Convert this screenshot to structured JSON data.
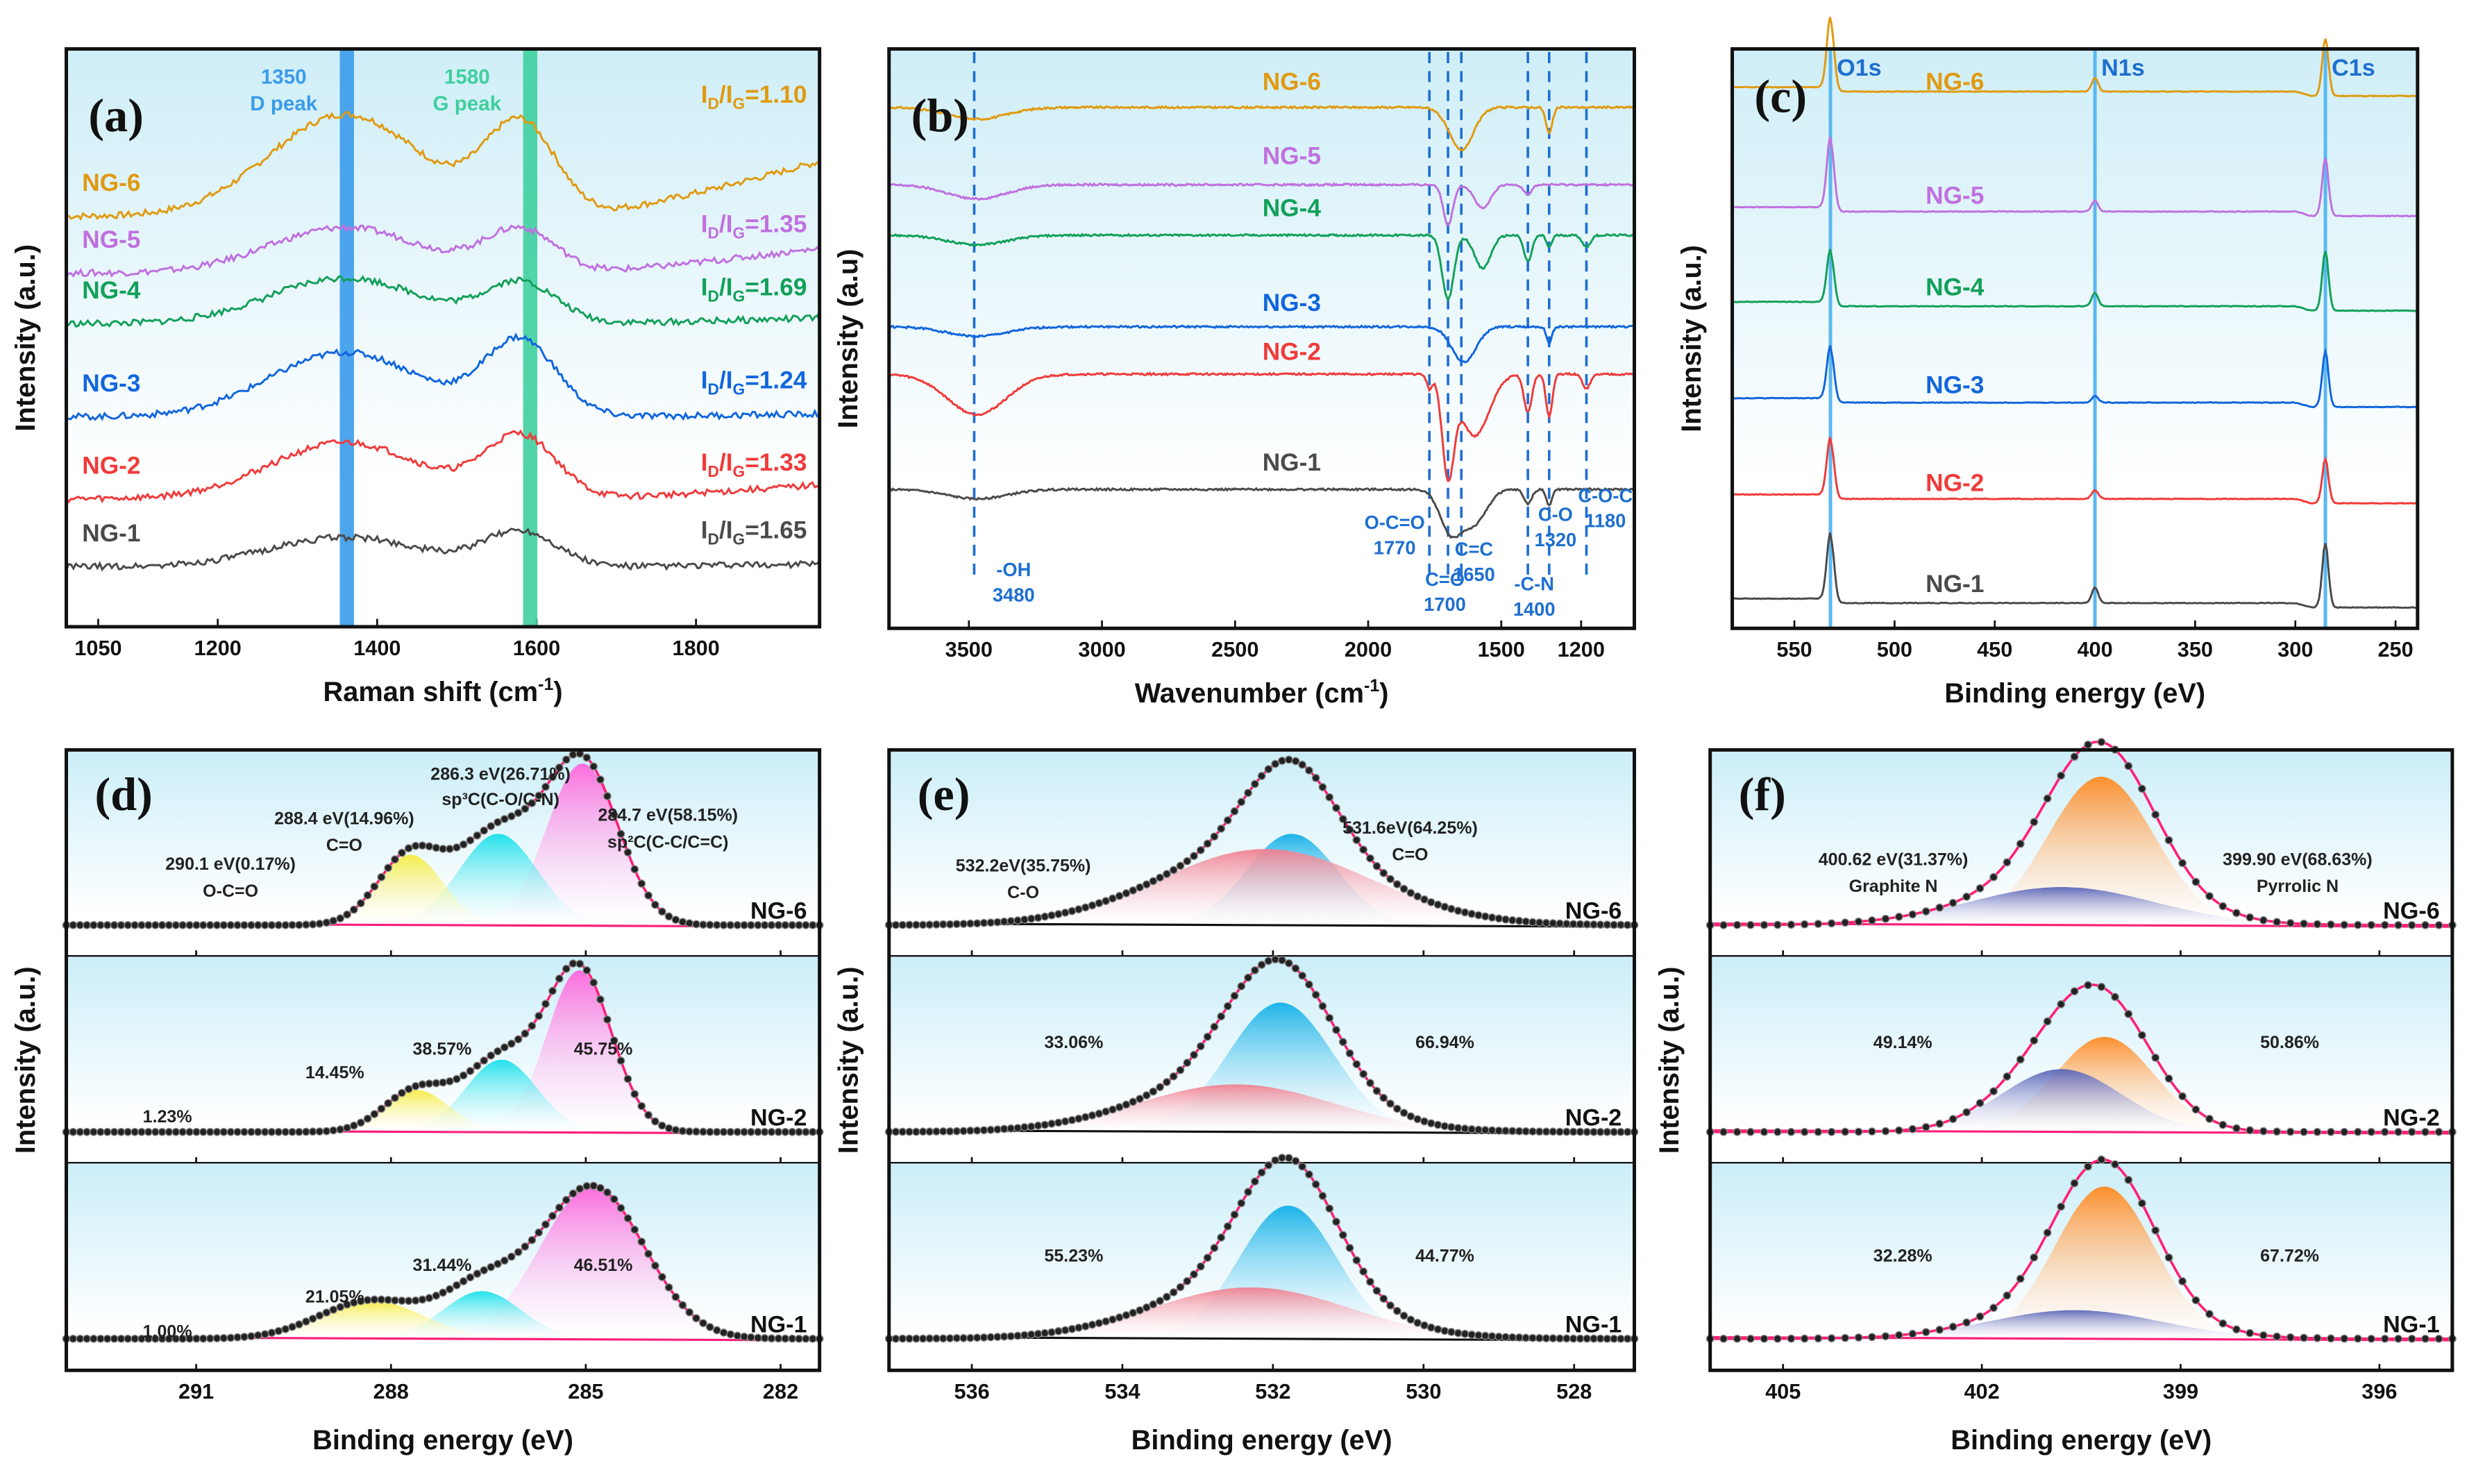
{
  "figure": {
    "panels": [
      "a",
      "b",
      "c",
      "d",
      "e",
      "f"
    ]
  },
  "colors": {
    "NG-1": "#4a4a4a",
    "NG-2": "#f03a3a",
    "NG-3": "#1166dd",
    "NG-4": "#12a05a",
    "NG-5": "#c070e0",
    "NG-6": "#e09a10",
    "d_peak": "#3a9bea",
    "g_peak": "#3fcf9e",
    "ref_line_blue": "#1e6fd0",
    "xps_line": "#5bb8f0",
    "fit_envelope": "#ff1f78",
    "points": "#222222",
    "c1s_sp2": "#ff66dd",
    "c1s_sp3": "#18e0ea",
    "c1s_co": "#f6ec40",
    "o1s_co_double": "#12b0e8",
    "o1s_co_single": "#f08090",
    "n1s_pyrrolic": "#ff8a22",
    "n1s_graphite": "#5a64b8",
    "bg_top": "#cfeef7"
  },
  "chart_data": [
    {
      "id": "a",
      "type": "line",
      "panel_tag": "(a)",
      "title": "",
      "xlabel": "Raman shift (cm",
      "xlabel_sup": "-1",
      "xlabel_end": ")",
      "ylabel": "Intensity (a.u.)",
      "xlim": [
        1010,
        1955
      ],
      "xticks": [
        1050,
        1200,
        1400,
        1600,
        1800
      ],
      "reference_bands": [
        {
          "position": 1350,
          "label_value": "1350",
          "label_name": "D peak"
        },
        {
          "position": 1580,
          "label_value": "1580",
          "label_name": "G peak"
        }
      ],
      "series": [
        {
          "name": "NG-6",
          "ratio_label": "I",
          "ratio_sub1": "D",
          "ratio_mid": "/I",
          "ratio_sub2": "G",
          "ratio_value": "=1.10",
          "ID_IG": 1.1,
          "offset": 5,
          "d_height": 1.9,
          "g_height": 1.7,
          "tail_rise": 1.0
        },
        {
          "name": "NG-5",
          "ratio_label": "I",
          "ratio_sub1": "D",
          "ratio_mid": "/I",
          "ratio_sub2": "G",
          "ratio_value": "=1.35",
          "ID_IG": 1.35,
          "offset": 4,
          "d_height": 0.85,
          "g_height": 0.8,
          "tail_rise": 0.45
        },
        {
          "name": "NG-4",
          "ratio_label": "I",
          "ratio_sub1": "D",
          "ratio_mid": "/I",
          "ratio_sub2": "G",
          "ratio_value": "=1.69",
          "ID_IG": 1.69,
          "offset": 3,
          "d_height": 0.85,
          "g_height": 0.75,
          "tail_rise": 0.1
        },
        {
          "name": "NG-3",
          "ratio_label": "I",
          "ratio_sub1": "D",
          "ratio_mid": "/I",
          "ratio_sub2": "G",
          "ratio_value": "=1.24",
          "ID_IG": 1.24,
          "offset": 2,
          "d_height": 1.2,
          "g_height": 1.4,
          "tail_rise": 0.05
        },
        {
          "name": "NG-2",
          "ratio_label": "I",
          "ratio_sub1": "D",
          "ratio_mid": "/I",
          "ratio_sub2": "G",
          "ratio_value": "=1.33",
          "ID_IG": 1.33,
          "offset": 1,
          "d_height": 1.05,
          "g_height": 1.15,
          "tail_rise": 0.25
        },
        {
          "name": "NG-1",
          "ratio_label": "I",
          "ratio_sub1": "D",
          "ratio_mid": "/I",
          "ratio_sub2": "G",
          "ratio_value": "=1.65",
          "ID_IG": 1.65,
          "offset": 0,
          "d_height": 0.55,
          "g_height": 0.65,
          "tail_rise": 0.05
        }
      ]
    },
    {
      "id": "b",
      "type": "line",
      "panel_tag": "(b)",
      "xlabel": "Wavenumber (cm",
      "xlabel_sup": "-1",
      "xlabel_end": ")",
      "ylabel": "Intensity (a.u)",
      "xlim": [
        3800,
        1000
      ],
      "xticks": [
        3500,
        3000,
        2500,
        2000,
        1500,
        1200
      ],
      "reference_lines": [
        3480,
        1770,
        1700,
        1650,
        1400,
        1320,
        1180
      ],
      "annotations": [
        {
          "x": 3480,
          "lines": [
            "-OH",
            "3480"
          ]
        },
        {
          "x": 1770,
          "lines": [
            "O-C=O",
            "1770"
          ]
        },
        {
          "x": 1700,
          "lines": [
            "C=O",
            "1700"
          ]
        },
        {
          "x": 1650,
          "lines": [
            "C=C",
            "1650"
          ]
        },
        {
          "x": 1400,
          "lines": [
            "-C-N",
            "1400"
          ]
        },
        {
          "x": 1320,
          "lines": [
            "C-O",
            "1320"
          ]
        },
        {
          "x": 1180,
          "lines": [
            "C-O-C",
            "1180"
          ]
        }
      ],
      "series": [
        {
          "name": "NG-6",
          "offset": 5.2,
          "oh": 0.25,
          "dips": [
            [
              1650,
              0.9,
              45
            ],
            [
              1320,
              0.55,
              12
            ]
          ]
        },
        {
          "name": "NG-5",
          "offset": 4.3,
          "oh": 0.3,
          "dips": [
            [
              1700,
              0.85,
              18
            ],
            [
              1570,
              0.5,
              30
            ],
            [
              1400,
              0.2,
              15
            ]
          ]
        },
        {
          "name": "NG-4",
          "offset": 3.3,
          "oh": 0.2,
          "dips": [
            [
              1700,
              1.35,
              22
            ],
            [
              1570,
              0.7,
              30
            ],
            [
              1400,
              0.55,
              15
            ],
            [
              1320,
              0.25,
              10
            ],
            [
              1180,
              0.25,
              15
            ]
          ]
        },
        {
          "name": "NG-3",
          "offset": 2.1,
          "oh": 0.2,
          "dips": [
            [
              1640,
              0.75,
              45
            ],
            [
              1320,
              0.35,
              10
            ]
          ]
        },
        {
          "name": "NG-2",
          "offset": 1.2,
          "oh": 0.85,
          "dips": [
            [
              1770,
              0.3,
              10
            ],
            [
              1700,
              2.0,
              22
            ],
            [
              1600,
              1.3,
              55
            ],
            [
              1400,
              0.8,
              15
            ],
            [
              1320,
              0.9,
              12
            ],
            [
              1180,
              0.3,
              15
            ]
          ]
        },
        {
          "name": "NG-1",
          "offset": 0,
          "oh": 0.2,
          "dips": [
            [
              1690,
              0.9,
              40
            ],
            [
              1600,
              0.7,
              45
            ],
            [
              1400,
              0.3,
              15
            ],
            [
              1320,
              0.35,
              10
            ]
          ]
        }
      ]
    },
    {
      "id": "c",
      "type": "line",
      "panel_tag": "(c)",
      "xlabel": "Binding energy (eV)",
      "ylabel": "Intensity (a.u.)",
      "xlim": [
        581,
        239
      ],
      "xticks": [
        550,
        500,
        450,
        400,
        350,
        300,
        250
      ],
      "reference_lines": [
        {
          "position": 532,
          "label": "O1s"
        },
        {
          "position": 400,
          "label": "N1s"
        },
        {
          "position": 285,
          "label": "C1s"
        }
      ],
      "series": [
        {
          "name": "NG-6",
          "offset": 5,
          "o1s": 1.6,
          "n1s": 0.3,
          "c1s": 1.2
        },
        {
          "name": "NG-5",
          "offset": 4,
          "o1s": 1.6,
          "n1s": 0.25,
          "c1s": 1.2
        },
        {
          "name": "NG-4",
          "offset": 3,
          "o1s": 1.2,
          "n1s": 0.3,
          "c1s": 1.25
        },
        {
          "name": "NG-3",
          "offset": 2,
          "o1s": 1.2,
          "n1s": 0.15,
          "c1s": 1.15
        },
        {
          "name": "NG-2",
          "offset": 1,
          "o1s": 1.3,
          "n1s": 0.2,
          "c1s": 0.9
        },
        {
          "name": "NG-1",
          "offset": 0,
          "o1s": 1.5,
          "n1s": 0.35,
          "c1s": 1.35
        }
      ]
    },
    {
      "id": "d",
      "type": "area",
      "panel_tag": "(d)",
      "xlabel": "Binding energy (eV)",
      "ylabel": "Intensity (a.u.)",
      "xlim": [
        293,
        281.4
      ],
      "xticks": [
        291,
        288,
        285,
        282
      ],
      "components": [
        {
          "key": "sp2",
          "color_key": "c1s_sp2",
          "center": 284.7,
          "label": "284.7 eV(58.15%)",
          "species": "sp²C(C-C/C=C)"
        },
        {
          "key": "sp3",
          "color_key": "c1s_sp3",
          "center": 286.3,
          "label": "286.3 eV(26.71%)",
          "species": "sp³C(C-O/C-N)"
        },
        {
          "key": "co",
          "color_key": "c1s_co",
          "center": 288.4,
          "label": "288.4 eV(14.96%)",
          "species": "C=O"
        },
        {
          "key": "oco",
          "color_key": "c1s_co",
          "center": 290.1,
          "label": "290.1 eV(0.17%)",
          "species": "O-C=O"
        }
      ],
      "subpanels": [
        {
          "sample": "NG-6",
          "percent_labels": [
            "0.17%",
            "14.96%",
            "26.71%",
            "58.15%"
          ],
          "peaks": [
            {
              "c": 285.05,
              "h": 0.85,
              "w": 0.55
            },
            {
              "c": 286.35,
              "h": 0.48,
              "w": 0.6
            },
            {
              "c": 287.7,
              "h": 0.37,
              "w": 0.5
            }
          ]
        },
        {
          "sample": "NG-2",
          "percent_labels": [
            "1.23%",
            "14.45%",
            "38.57%",
            "45.75%"
          ],
          "peaks": [
            {
              "c": 285.1,
              "h": 0.85,
              "w": 0.5
            },
            {
              "c": 286.3,
              "h": 0.38,
              "w": 0.55
            },
            {
              "c": 287.6,
              "h": 0.22,
              "w": 0.5
            }
          ]
        },
        {
          "sample": "NG-1",
          "percent_labels": [
            "1.00%",
            "21.05%",
            "31.44%",
            "46.51%"
          ],
          "peaks": [
            {
              "c": 284.9,
              "h": 0.8,
              "w": 0.8
            },
            {
              "c": 286.6,
              "h": 0.25,
              "w": 0.6
            },
            {
              "c": 288.3,
              "h": 0.2,
              "w": 0.8
            }
          ]
        }
      ]
    },
    {
      "id": "e",
      "type": "area",
      "panel_tag": "(e)",
      "xlabel": "Binding energy (eV)",
      "ylabel": "Intensity (a.u.)",
      "xlim": [
        537.1,
        527.2
      ],
      "xticks": [
        536,
        534,
        532,
        530,
        528
      ],
      "components": [
        {
          "key": "co_double",
          "color_key": "o1s_co_double",
          "center": 531.6,
          "label": "531.6eV(64.25%)",
          "species": "C=O"
        },
        {
          "key": "co_single",
          "color_key": "o1s_co_single",
          "center": 532.2,
          "label": "532.2eV(35.75%)",
          "species": "C-O"
        }
      ],
      "subpanels": [
        {
          "sample": "NG-6",
          "percent_labels": [
            "35.75%",
            "64.25%"
          ],
          "peaks": [
            {
              "c": 531.75,
              "h": 0.48,
              "w": 0.6
            },
            {
              "c": 532.1,
              "h": 0.4,
              "w": 1.4
            }
          ]
        },
        {
          "sample": "NG-2",
          "percent_labels": [
            "33.06%",
            "66.94%"
          ],
          "peaks": [
            {
              "c": 531.9,
              "h": 0.68,
              "w": 0.7
            },
            {
              "c": 532.5,
              "h": 0.25,
              "w": 1.3
            }
          ]
        },
        {
          "sample": "NG-1",
          "percent_labels": [
            "55.23%",
            "44.77%"
          ],
          "peaks": [
            {
              "c": 531.8,
              "h": 0.7,
              "w": 0.65
            },
            {
              "c": 532.3,
              "h": 0.27,
              "w": 1.3
            }
          ]
        }
      ]
    },
    {
      "id": "f",
      "type": "area",
      "panel_tag": "(f)",
      "xlabel": "Binding energy (eV)",
      "ylabel": "Intensity (a.u.)",
      "xlim": [
        406.1,
        394.9
      ],
      "xticks": [
        405,
        402,
        399,
        396
      ],
      "components": [
        {
          "key": "pyrrolic",
          "color_key": "n1s_pyrrolic",
          "center": 399.9,
          "label": "399.90 eV(68.63%)",
          "species": "Pyrrolic N"
        },
        {
          "key": "graphite",
          "color_key": "n1s_graphite",
          "center": 400.62,
          "label": "400.62 eV(31.37%)",
          "species": "Graphite N"
        }
      ],
      "subpanels": [
        {
          "sample": "NG-6",
          "percent_labels": [
            "31.37%",
            "68.63%"
          ],
          "peaks": [
            {
              "c": 400.2,
              "h": 0.78,
              "w": 0.8
            },
            {
              "c": 400.8,
              "h": 0.2,
              "w": 1.4
            }
          ]
        },
        {
          "sample": "NG-2",
          "percent_labels": [
            "49.14%",
            "50.86%"
          ],
          "peaks": [
            {
              "c": 400.15,
              "h": 0.5,
              "w": 0.75
            },
            {
              "c": 400.8,
              "h": 0.33,
              "w": 0.9
            }
          ]
        },
        {
          "sample": "NG-1",
          "percent_labels": [
            "32.28%",
            "67.72%"
          ],
          "peaks": [
            {
              "c": 400.15,
              "h": 0.8,
              "w": 0.75
            },
            {
              "c": 400.6,
              "h": 0.15,
              "w": 1.3
            }
          ]
        }
      ]
    }
  ]
}
